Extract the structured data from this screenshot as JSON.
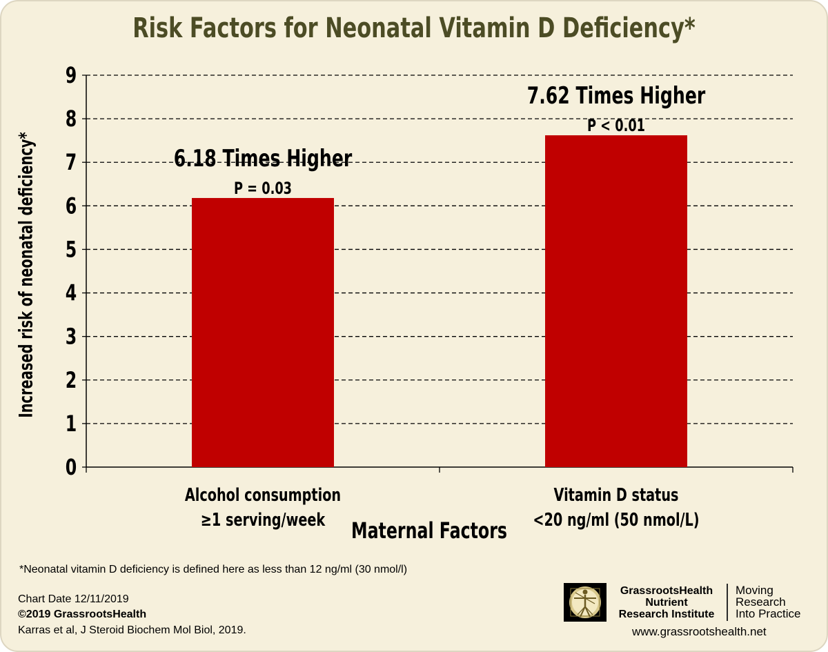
{
  "chart_data": {
    "type": "bar",
    "title": "Risk Factors for Neonatal Vitamin D Deficiency*",
    "ylabel": "Increased risk of neonatal deficiency*",
    "xlabel": "Maternal Factors",
    "ylim": [
      0,
      9
    ],
    "yticks": [
      "0",
      "1",
      "2",
      "3",
      "4",
      "5",
      "6",
      "7",
      "8",
      "9"
    ],
    "grid": true,
    "categories": [
      [
        "Alcohol consumption",
        "≥1 serving/week"
      ],
      [
        "Vitamin D status",
        "<20 ng/ml (50 nmol/L)"
      ]
    ],
    "values": [
      6.18,
      7.62
    ],
    "annotations": [
      {
        "headline": "6.18 Times Higher",
        "pvalue": "P = 0.03"
      },
      {
        "headline": "7.62 Times Higher",
        "pvalue": "P < 0.01"
      }
    ],
    "bar_color": "#c00000"
  },
  "footnote": "*Neonatal vitamin D deficiency is defined here as less than 12 ng/ml (30 nmol/l)",
  "chart_date": "Chart Date 12/11/2019",
  "copyright": "©2019 GrassrootsHealth",
  "citation": "Karras et al, J Steroid Biochem Mol Biol, 2019.",
  "logo": {
    "org_line1": "GrassrootsHealth",
    "org_line2": "Nutrient",
    "org_line3": "Research Institute",
    "tag_line1": "Moving",
    "tag_line2": "Research",
    "tag_line3": "Into Practice",
    "website": "www.grassrootshealth.net"
  }
}
